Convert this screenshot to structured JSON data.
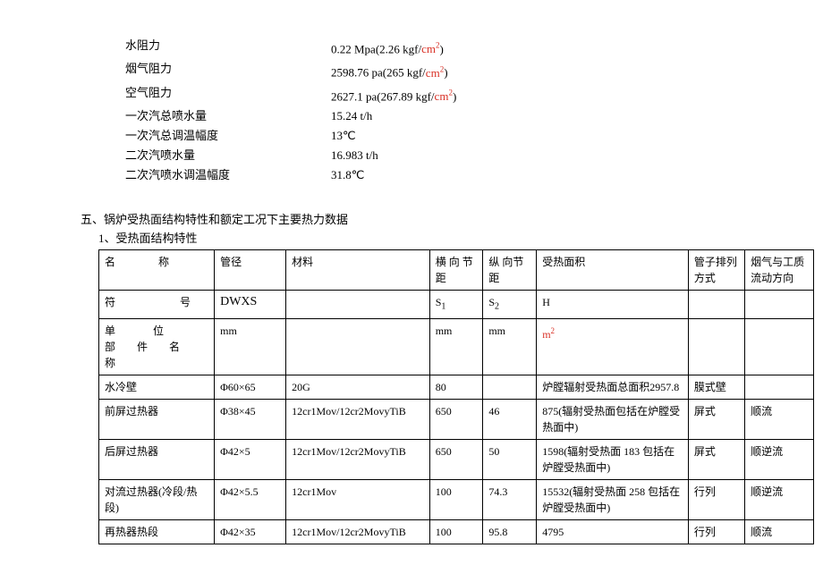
{
  "params": [
    {
      "label": "水阻力",
      "value": "0.22 Mpa(2.26 kgf/",
      "suffix_cm2": true,
      "tail": ")"
    },
    {
      "label": "烟气阻力",
      "value": "2598.76 pa(265 kgf/",
      "suffix_cm2": true,
      "tail": ")"
    },
    {
      "label": "空气阻力",
      "value": "2627.1 pa(267.89 kgf/",
      "suffix_cm2": true,
      "tail": ")"
    },
    {
      "label": "一次汽总喷水量",
      "value": "15.24 t/h"
    },
    {
      "label": "一次汽总调温幅度",
      "value": "13℃"
    },
    {
      "label": "二次汽喷水量",
      "value": "16.983 t/h"
    },
    {
      "label": "二次汽喷水调温幅度",
      "value": "31.8℃"
    }
  ],
  "section_title": "五、锅炉受热面结构特性和额定工况下主要热力数据",
  "sub_title": "1、受热面结构特性",
  "header": {
    "name": "名　　称",
    "dia": "管径",
    "mat": "材料",
    "s1": "横 向 节距",
    "s2": "纵 向节距",
    "area": "受热面积",
    "arr": "管子排列方式",
    "dir": "烟气与工质流动方向"
  },
  "row_sym": {
    "name": "符　　号",
    "dia": "DWXS",
    "s1_html": "S<sub>1</sub>",
    "s2_html": "S<sub>2</sub>",
    "area": "H"
  },
  "row_unit": {
    "name": "单　　位\n部　件　名　称",
    "dia": "mm",
    "s1": "mm",
    "s2": "mm",
    "area_html": "<span class='m2'>m<sup>2</sup></span>"
  },
  "rows": [
    {
      "name": "水冷壁",
      "dia": "Φ60×65",
      "mat": "20G",
      "s1": "80",
      "s2": "",
      "area": "炉膛辐射受热面总面积2957.8",
      "arr": "膜式壁",
      "dir": ""
    },
    {
      "name": "前屏过热器",
      "dia": "Φ38×45",
      "mat": "12cr1Mov/12cr2MovyTiB",
      "s1": "650",
      "s2": "46",
      "area": "875(辐射受热面包括在炉膛受热面中)",
      "arr": "屏式",
      "dir": "顺流"
    },
    {
      "name": "后屏过热器",
      "dia": "Φ42×5",
      "mat": "12cr1Mov/12cr2MovyTiB",
      "s1": "650",
      "s2": "50",
      "area": "1598(辐射受热面 183 包括在炉膛受热面中)",
      "arr": "屏式",
      "dir": "顺逆流"
    },
    {
      "name": "对流过热器(冷段/热段)",
      "dia": "Φ42×5.5",
      "mat": "12cr1Mov",
      "s1": "100",
      "s2": "74.3",
      "area": "15532(辐射受热面 258 包括在炉膛受热面中)",
      "arr": "行列",
      "dir": "顺逆流"
    },
    {
      "name": "再热器热段",
      "dia": "Φ42×35",
      "mat": "12cr1Mov/12cr2MovyTiB",
      "s1": "100",
      "s2": "95.8",
      "area": "4795",
      "arr": "行列",
      "dir": "顺流"
    }
  ]
}
